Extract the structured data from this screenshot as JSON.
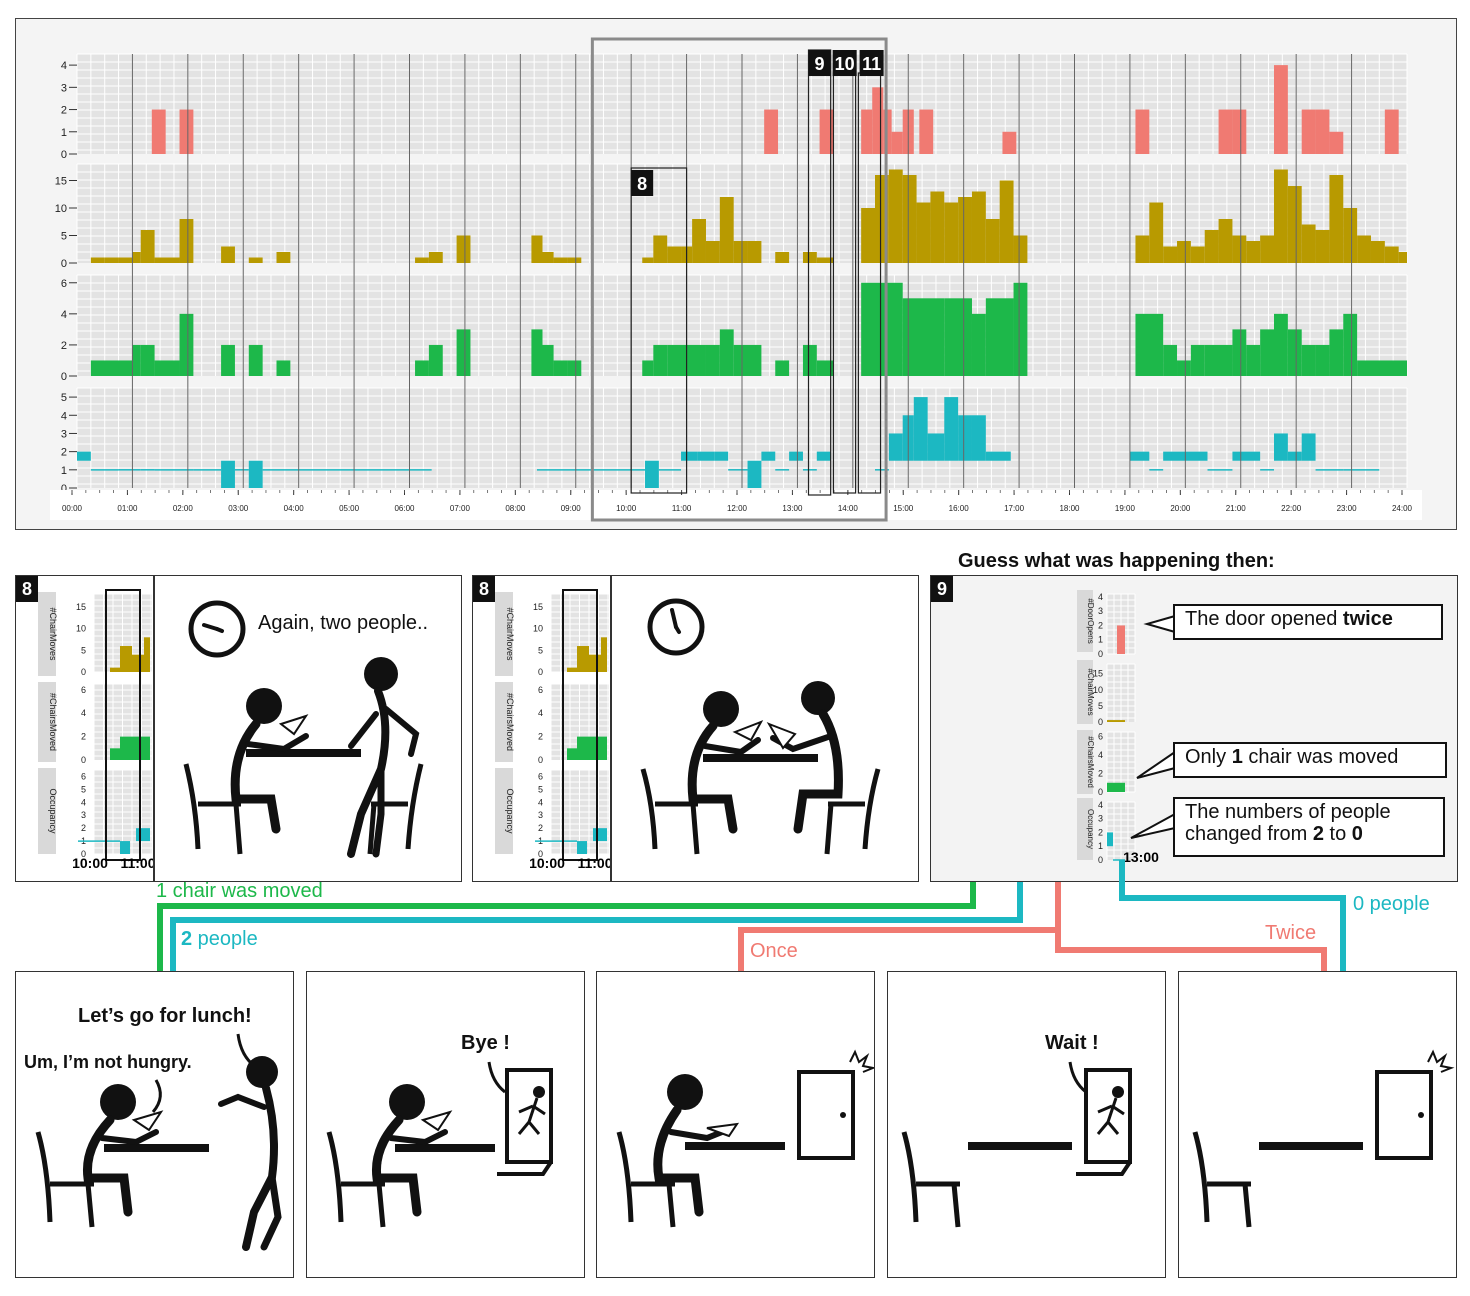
{
  "main_chart": {
    "x_ticks": [
      "00:00",
      "01:00",
      "02:00",
      "03:00",
      "04:00",
      "05:00",
      "06:00",
      "07:00",
      "08:00",
      "09:00",
      "10:00",
      "11:00",
      "12:00",
      "13:00",
      "14:00",
      "15:00",
      "16:00",
      "17:00",
      "18:00",
      "19:00",
      "20:00",
      "21:00",
      "22:00",
      "23:00",
      "24:00"
    ],
    "facet_ticks": [
      [
        "0",
        "1",
        "2",
        "3",
        "4"
      ],
      [
        "0",
        "5",
        "10",
        "15"
      ],
      [
        "0",
        "2",
        "4",
        "6"
      ],
      [
        "0",
        "1",
        "2",
        "3",
        "4",
        "5"
      ]
    ],
    "markers": [
      "8",
      "9",
      "10",
      "11"
    ]
  },
  "chart_data": {
    "type": "bar",
    "x_unit": "hour of day",
    "xlim": [
      0,
      24
    ],
    "series": [
      {
        "ylim": [
          0,
          4.5
        ],
        "color": "#f07a72",
        "style": "bar",
        "bars": [
          [
            1.35,
            1.6,
            2
          ],
          [
            1.85,
            2.1,
            2
          ],
          [
            12.4,
            12.65,
            2
          ],
          [
            13.4,
            13.65,
            2
          ],
          [
            14.15,
            14.35,
            2
          ],
          [
            14.35,
            14.55,
            3
          ],
          [
            14.55,
            14.7,
            2
          ],
          [
            14.7,
            14.9,
            1
          ],
          [
            14.9,
            15.1,
            2
          ],
          [
            15.2,
            15.45,
            2
          ],
          [
            16.7,
            16.95,
            1
          ],
          [
            19.1,
            19.35,
            2
          ],
          [
            20.6,
            20.85,
            2
          ],
          [
            20.85,
            21.1,
            2
          ],
          [
            21.6,
            21.85,
            4
          ],
          [
            22.1,
            22.35,
            2
          ],
          [
            22.35,
            22.6,
            2
          ],
          [
            22.6,
            22.85,
            1
          ],
          [
            23.6,
            23.85,
            2
          ]
        ]
      },
      {
        "ylim": [
          0,
          18
        ],
        "color": "#b89a00",
        "style": "bar",
        "bars": [
          [
            0.25,
            0.5,
            1
          ],
          [
            0.5,
            0.75,
            1
          ],
          [
            0.75,
            1.0,
            1
          ],
          [
            1.0,
            1.15,
            2
          ],
          [
            1.15,
            1.4,
            6
          ],
          [
            1.4,
            1.85,
            1
          ],
          [
            1.85,
            2.1,
            8
          ],
          [
            2.6,
            2.85,
            3
          ],
          [
            3.1,
            3.35,
            1
          ],
          [
            3.6,
            3.85,
            2
          ],
          [
            6.1,
            6.35,
            1
          ],
          [
            6.35,
            6.6,
            2
          ],
          [
            6.85,
            7.1,
            5
          ],
          [
            8.2,
            8.4,
            5
          ],
          [
            8.4,
            8.6,
            2
          ],
          [
            8.6,
            8.85,
            1
          ],
          [
            8.85,
            9.1,
            1
          ],
          [
            10.2,
            10.4,
            1
          ],
          [
            10.4,
            10.65,
            5
          ],
          [
            10.65,
            10.9,
            3
          ],
          [
            10.9,
            11.1,
            3
          ],
          [
            11.1,
            11.35,
            8
          ],
          [
            11.35,
            11.6,
            4
          ],
          [
            11.6,
            11.85,
            12
          ],
          [
            11.85,
            12.1,
            4
          ],
          [
            12.1,
            12.35,
            4
          ],
          [
            12.6,
            12.85,
            2
          ],
          [
            13.1,
            13.35,
            2
          ],
          [
            13.35,
            13.65,
            1
          ],
          [
            14.15,
            14.4,
            10
          ],
          [
            14.4,
            14.65,
            16
          ],
          [
            14.65,
            14.9,
            17
          ],
          [
            14.9,
            15.15,
            16
          ],
          [
            15.15,
            15.4,
            11
          ],
          [
            15.4,
            15.65,
            13
          ],
          [
            15.65,
            15.9,
            11
          ],
          [
            15.9,
            16.15,
            12
          ],
          [
            16.15,
            16.4,
            13
          ],
          [
            16.4,
            16.65,
            8
          ],
          [
            16.65,
            16.9,
            15
          ],
          [
            16.9,
            17.15,
            5
          ],
          [
            19.1,
            19.35,
            5
          ],
          [
            19.35,
            19.6,
            11
          ],
          [
            19.6,
            19.85,
            3
          ],
          [
            19.85,
            20.1,
            4
          ],
          [
            20.1,
            20.35,
            3
          ],
          [
            20.35,
            20.6,
            6
          ],
          [
            20.6,
            20.85,
            8
          ],
          [
            20.85,
            21.1,
            5
          ],
          [
            21.1,
            21.35,
            4
          ],
          [
            21.35,
            21.6,
            5
          ],
          [
            21.6,
            21.85,
            17
          ],
          [
            21.85,
            22.1,
            14
          ],
          [
            22.1,
            22.35,
            7
          ],
          [
            22.35,
            22.6,
            6
          ],
          [
            22.6,
            22.85,
            16
          ],
          [
            22.85,
            23.1,
            10
          ],
          [
            23.1,
            23.35,
            5
          ],
          [
            23.35,
            23.6,
            4
          ],
          [
            23.6,
            23.85,
            3
          ],
          [
            23.85,
            24.0,
            2
          ]
        ]
      },
      {
        "ylim": [
          0,
          6.5
        ],
        "color": "#1db84a",
        "style": "bar",
        "bars": [
          [
            0.25,
            1.0,
            1
          ],
          [
            1.0,
            1.15,
            2
          ],
          [
            1.15,
            1.4,
            2
          ],
          [
            1.4,
            1.85,
            1
          ],
          [
            1.85,
            2.1,
            4
          ],
          [
            2.6,
            2.85,
            2
          ],
          [
            3.1,
            3.35,
            2
          ],
          [
            3.6,
            3.85,
            1
          ],
          [
            6.1,
            6.35,
            1
          ],
          [
            6.35,
            6.6,
            2
          ],
          [
            6.85,
            7.1,
            3
          ],
          [
            8.2,
            8.4,
            3
          ],
          [
            8.4,
            8.6,
            2
          ],
          [
            8.6,
            8.85,
            1
          ],
          [
            8.85,
            9.1,
            1
          ],
          [
            10.2,
            10.4,
            1
          ],
          [
            10.4,
            10.65,
            2
          ],
          [
            10.65,
            11.35,
            2
          ],
          [
            11.35,
            11.6,
            2
          ],
          [
            11.6,
            11.85,
            3
          ],
          [
            11.85,
            12.35,
            2
          ],
          [
            12.6,
            12.85,
            1
          ],
          [
            13.1,
            13.35,
            2
          ],
          [
            13.35,
            13.65,
            1
          ],
          [
            14.15,
            14.4,
            6
          ],
          [
            14.4,
            14.9,
            6
          ],
          [
            14.9,
            15.65,
            5
          ],
          [
            15.65,
            16.15,
            5
          ],
          [
            16.15,
            16.4,
            4
          ],
          [
            16.4,
            16.9,
            5
          ],
          [
            16.9,
            17.15,
            6
          ],
          [
            19.1,
            19.6,
            4
          ],
          [
            19.6,
            19.85,
            2
          ],
          [
            19.85,
            20.1,
            1
          ],
          [
            20.1,
            20.35,
            2
          ],
          [
            20.35,
            20.85,
            2
          ],
          [
            20.85,
            21.1,
            3
          ],
          [
            21.1,
            21.35,
            2
          ],
          [
            21.35,
            21.6,
            3
          ],
          [
            21.6,
            21.85,
            4
          ],
          [
            21.85,
            22.1,
            3
          ],
          [
            22.1,
            22.35,
            2
          ],
          [
            22.35,
            22.6,
            2
          ],
          [
            22.6,
            22.85,
            3
          ],
          [
            22.85,
            23.1,
            4
          ],
          [
            23.1,
            24.0,
            1
          ]
        ]
      },
      {
        "ylim": [
          0,
          5.5
        ],
        "color": "#1cb8c2",
        "style": "step",
        "bars": [
          [
            0,
            0.25,
            2
          ],
          [
            0.25,
            0.75,
            1
          ],
          [
            0.75,
            1.0,
            1
          ],
          [
            1.0,
            1.15,
            1
          ],
          [
            1.15,
            1.4,
            1
          ],
          [
            1.4,
            2.1,
            1
          ],
          [
            2.1,
            2.6,
            1
          ],
          [
            2.6,
            2.85,
            0
          ],
          [
            2.85,
            3.1,
            1
          ],
          [
            3.1,
            3.35,
            0
          ],
          [
            3.35,
            6.4,
            1
          ],
          [
            8.3,
            10.25,
            1
          ],
          [
            10.25,
            10.5,
            0
          ],
          [
            10.5,
            10.9,
            1
          ],
          [
            10.9,
            11.2,
            2
          ],
          [
            11.2,
            11.5,
            2
          ],
          [
            11.5,
            11.75,
            2
          ],
          [
            11.75,
            12.0,
            1
          ],
          [
            12.0,
            12.1,
            1
          ],
          [
            12.1,
            12.35,
            0
          ],
          [
            12.35,
            12.6,
            2
          ],
          [
            12.6,
            12.85,
            1
          ],
          [
            12.85,
            13.1,
            2
          ],
          [
            13.1,
            13.35,
            1
          ],
          [
            13.35,
            13.6,
            2
          ],
          [
            14.4,
            14.65,
            1
          ],
          [
            14.65,
            14.9,
            3
          ],
          [
            14.9,
            15.1,
            4
          ],
          [
            15.1,
            15.35,
            5
          ],
          [
            15.35,
            15.65,
            3
          ],
          [
            15.65,
            15.9,
            5
          ],
          [
            15.9,
            16.15,
            4
          ],
          [
            16.15,
            16.4,
            4
          ],
          [
            16.4,
            16.85,
            2
          ],
          [
            19.0,
            19.35,
            2
          ],
          [
            19.35,
            19.6,
            1
          ],
          [
            19.6,
            20.4,
            2
          ],
          [
            20.4,
            20.85,
            1
          ],
          [
            20.85,
            21.35,
            2
          ],
          [
            21.35,
            21.6,
            1
          ],
          [
            21.6,
            21.85,
            3
          ],
          [
            21.85,
            22.1,
            2
          ],
          [
            22.1,
            22.35,
            3
          ],
          [
            22.35,
            22.85,
            1
          ],
          [
            22.85,
            23.5,
            1
          ]
        ]
      }
    ]
  },
  "panel8a": {
    "badge": "8",
    "facets": [
      "#ChairMoves",
      "#ChairsMoved",
      "Occupancy"
    ],
    "t0": "10:00",
    "t1": "11:00",
    "thought": "Again, two people..",
    "ticks_cm": [
      "0",
      "5",
      "10",
      "15"
    ],
    "ticks_cs": [
      "0",
      "2",
      "4",
      "6"
    ],
    "ticks_oc": [
      "0",
      "1",
      "2",
      "3",
      "4",
      "5",
      "6"
    ]
  },
  "panel8b": {
    "badge": "8",
    "facets": [
      "#ChairMoves",
      "#ChairsMoved",
      "Occupancy"
    ],
    "t0": "10:00",
    "t1": "11:00",
    "ticks_cm": [
      "0",
      "5",
      "10",
      "15"
    ],
    "ticks_cs": [
      "0",
      "2",
      "4",
      "6"
    ],
    "ticks_oc": [
      "0",
      "1",
      "2",
      "3",
      "4",
      "5",
      "6"
    ]
  },
  "panel9": {
    "badge": "9",
    "heading": "Guess what was  happening then:",
    "facets": [
      "#DoorOpens",
      "#ChairMoves",
      "#ChairsMoved",
      "Occupancy"
    ],
    "time": "13:00",
    "ticks_do": [
      "0",
      "1",
      "2",
      "3",
      "4"
    ],
    "ticks_cm": [
      "0",
      "5",
      "10",
      "15"
    ],
    "ticks_cs": [
      "0",
      "2",
      "4",
      "6"
    ],
    "ticks_oc": [
      "0",
      "1",
      "2",
      "3",
      "4"
    ],
    "callout_door_pre": "The door opened ",
    "callout_door_bold": "twice",
    "callout_chair_pre": "Only ",
    "callout_chair_bold": "1",
    "callout_chair_post": " chair was moved",
    "callout_people_l1": "The numbers of people",
    "callout_people_pre": "changed from ",
    "callout_people_b1": "2",
    "callout_people_mid": " to ",
    "callout_people_b2": "0"
  },
  "connectors": {
    "chair_label": "1 chair was moved",
    "people_num": "2",
    "people_rest": " people",
    "once": "Once",
    "twice": "Twice",
    "zero_people": "0 people",
    "colors": {
      "green": "#1db84a",
      "cyan": "#1cb8c2",
      "red": "#f07a72"
    }
  },
  "comics": {
    "c1_speech": "Let’s go for lunch!",
    "c1_reply": "Um, I’m not hungry.",
    "c2_speech": "Bye !",
    "c4_speech": "Wait !"
  }
}
